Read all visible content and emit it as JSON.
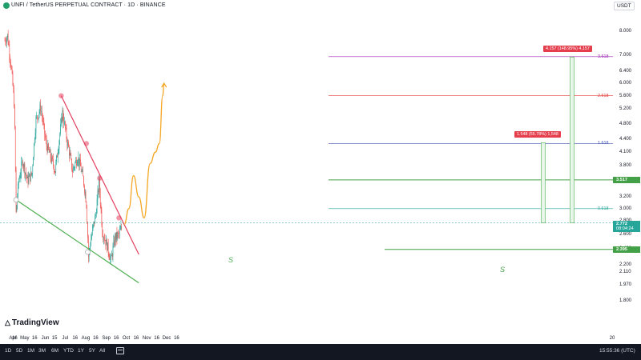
{
  "header": {
    "title": "UNFI / TetherUS PERPETUAL CONTRACT · 1D · BINANCE",
    "currency": "USDT"
  },
  "branding": {
    "logo": "TradingView",
    "logo_icon": "tradingview-logo-icon"
  },
  "bottom_bar": {
    "timeframes": [
      "1D",
      "5D",
      "1M",
      "3M",
      "6M",
      "YTD",
      "1Y",
      "5Y",
      "All"
    ],
    "calendar_icon": "calendar-range-icon",
    "clock": "15:55:36 (UTC)"
  },
  "colors": {
    "up": "#26a69a",
    "down": "#ef5350",
    "resistance": "#e4405f",
    "support": "#4caf50",
    "projection": "#f5a623",
    "level": "#43a047",
    "price_badge": "#26a69a"
  },
  "chart_data": {
    "type": "candlestick",
    "title": "UNFI / TetherUS PERPETUAL CONTRACT · 1D · BINANCE",
    "y_scale": "log",
    "ylim": [
      1.75,
      8.8
    ],
    "y_ticks": [
      "8.000",
      "7.000",
      "6.400",
      "6.000",
      "5.600",
      "5.200",
      "4.800",
      "4.400",
      "4.100",
      "3.800",
      "3.500",
      "3.200",
      "3.000",
      "2.800",
      "2.600",
      "2.400",
      "2.200",
      "2.110",
      "1.970",
      "1.800"
    ],
    "x_ticks": [
      "Apr",
      "16",
      "May",
      "16",
      "Jun",
      "15",
      "Jul",
      "16",
      "Aug",
      "16",
      "Sep",
      "16",
      "Oct",
      "16",
      "Nov",
      "16",
      "Dec",
      "16",
      "20"
    ],
    "price_path": [
      [
        "2024-04-01",
        7.6
      ],
      [
        "2024-04-05",
        7.8
      ],
      [
        "2024-04-10",
        6.7
      ],
      [
        "2024-04-15",
        5.4
      ],
      [
        "2024-04-18",
        2.92
      ],
      [
        "2024-04-22",
        3.5
      ],
      [
        "2024-04-28",
        3.9
      ],
      [
        "2024-05-05",
        3.5
      ],
      [
        "2024-05-12",
        3.65
      ],
      [
        "2024-05-18",
        4.9
      ],
      [
        "2024-05-25",
        5.25
      ],
      [
        "2024-06-02",
        4.3
      ],
      [
        "2024-06-10",
        3.95
      ],
      [
        "2024-06-16",
        3.7
      ],
      [
        "2024-06-22",
        4.4
      ],
      [
        "2024-06-27",
        5.1
      ],
      [
        "2024-07-04",
        4.35
      ],
      [
        "2024-07-12",
        3.7
      ],
      [
        "2024-07-20",
        4.0
      ],
      [
        "2024-07-28",
        3.55
      ],
      [
        "2024-08-02",
        3.1
      ],
      [
        "2024-08-05",
        2.3
      ],
      [
        "2024-08-10",
        2.6
      ],
      [
        "2024-08-16",
        2.9
      ],
      [
        "2024-08-21",
        3.45
      ],
      [
        "2024-08-26",
        2.65
      ],
      [
        "2024-09-02",
        2.45
      ],
      [
        "2024-09-08",
        2.25
      ],
      [
        "2024-09-14",
        2.55
      ],
      [
        "2024-09-20",
        2.6
      ],
      [
        "2024-09-25",
        2.72
      ]
    ],
    "last_price": "2.772",
    "countdown": "08:04:24",
    "levels": [
      {
        "label": "3.517",
        "value": 3.517
      },
      {
        "label": "2.395",
        "value": 2.395
      }
    ],
    "fib_levels": [
      {
        "label": "3.618",
        "value": 6.95
      },
      {
        "label": "2.618",
        "value": 5.6
      },
      {
        "label": "1.618",
        "value": 4.3
      },
      {
        "label": "0.618",
        "value": 3.0
      }
    ],
    "measures": [
      {
        "text": "1.548 (55.78%) 1,548",
        "from": 2.772,
        "to": 4.32
      },
      {
        "text": "4.157 (148.95%) 4,157",
        "from": 2.772,
        "to": 6.93
      }
    ],
    "trendlines": [
      {
        "name": "resistance",
        "points": [
          [
            "2024-06-25",
            5.6
          ],
          [
            "2024-10-20",
            2.33
          ]
        ]
      },
      {
        "name": "support",
        "points": [
          [
            "2024-04-18",
            3.15
          ],
          [
            "2024-10-20",
            1.99
          ]
        ]
      }
    ],
    "projection_path": [
      [
        "2024-09-28",
        2.75
      ],
      [
        "2024-10-05",
        3.0
      ],
      [
        "2024-10-12",
        3.6
      ],
      [
        "2024-10-20",
        3.2
      ],
      [
        "2024-10-28",
        2.85
      ],
      [
        "2024-11-06",
        3.85
      ],
      [
        "2024-11-14",
        4.1
      ],
      [
        "2024-11-20",
        4.3
      ],
      [
        "2024-11-25",
        5.6
      ],
      [
        "2024-11-27",
        6.0
      ]
    ],
    "wave_label": "S",
    "grid": false
  }
}
